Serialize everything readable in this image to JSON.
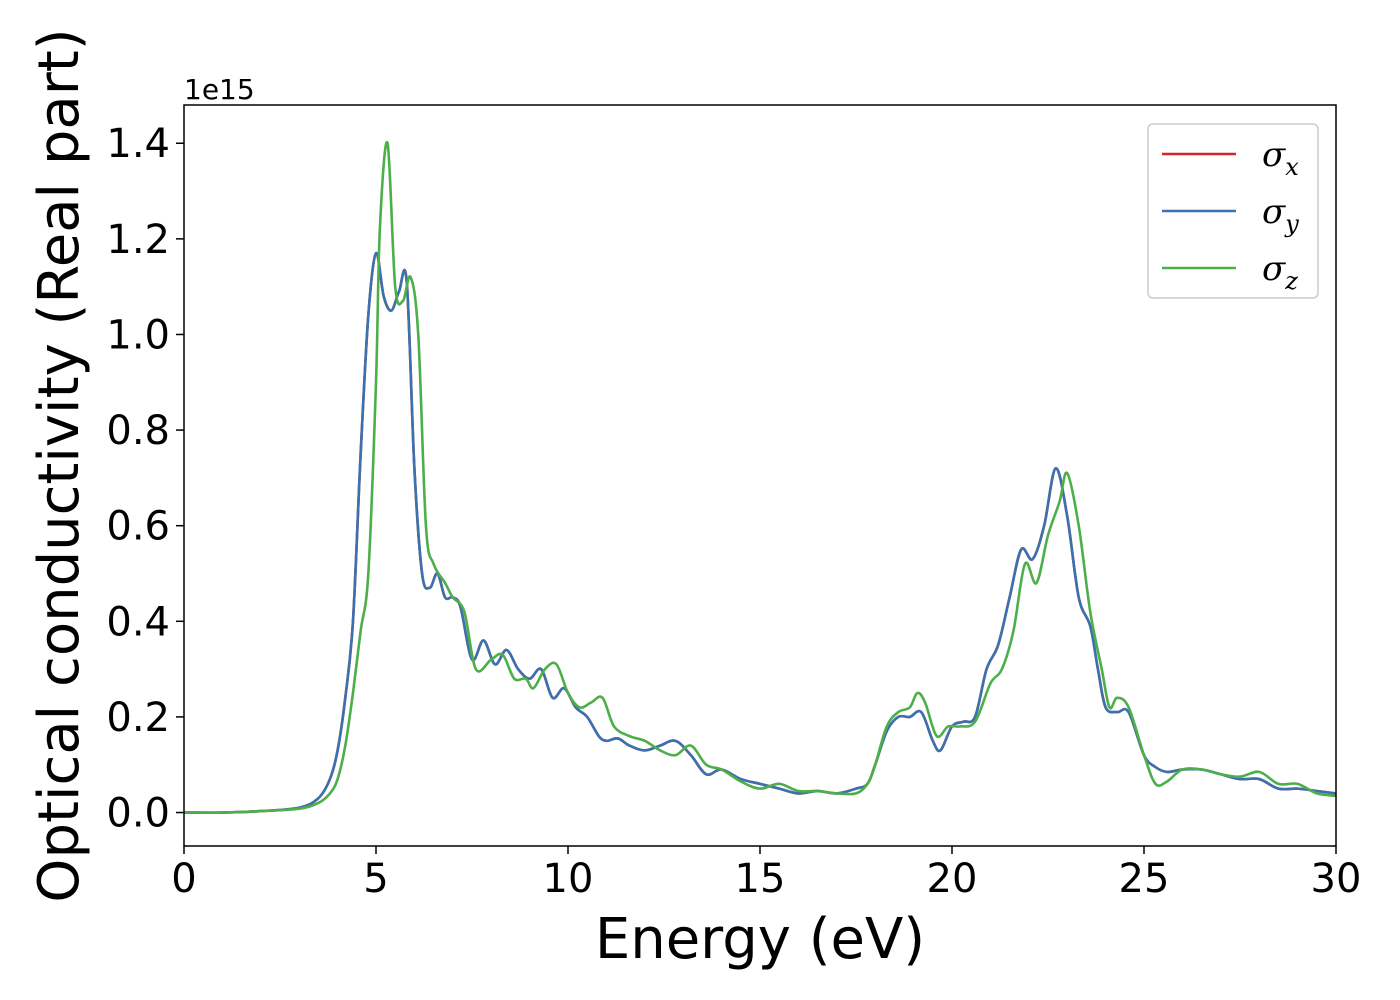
{
  "chart_data": {
    "type": "line",
    "title": "",
    "xlabel": "Energy (eV)",
    "ylabel": "Optical conductivity (Real part)",
    "y_offset_label": "1e15",
    "xlim": [
      0,
      30
    ],
    "ylim": [
      -0.07,
      1.48
    ],
    "x_ticks": [
      0,
      5,
      10,
      15,
      20,
      25,
      30
    ],
    "x_tick_labels": [
      "0",
      "5",
      "10",
      "15",
      "20",
      "25",
      "30"
    ],
    "y_ticks": [
      0.0,
      0.2,
      0.4,
      0.6,
      0.8,
      1.0,
      1.2,
      1.4
    ],
    "y_tick_labels": [
      "0.0",
      "0.2",
      "0.4",
      "0.6",
      "0.8",
      "1.0",
      "1.2",
      "1.4"
    ],
    "grid": false,
    "legend_position": "top-right",
    "series": [
      {
        "name": "σ",
        "subscript": "x",
        "color": "#d62728",
        "x": [
          0,
          1,
          2,
          3,
          3.5,
          3.8,
          4.0,
          4.2,
          4.4,
          4.6,
          4.8,
          5.0,
          5.2,
          5.4,
          5.6,
          5.8,
          6.0,
          6.2,
          6.4,
          6.6,
          6.8,
          7.0,
          7.2,
          7.5,
          7.8,
          8.1,
          8.4,
          8.7,
          9.0,
          9.3,
          9.6,
          9.9,
          10.2,
          10.5,
          10.8,
          11.0,
          11.3,
          11.6,
          12.0,
          12.4,
          12.8,
          13.2,
          13.6,
          14.0,
          14.5,
          15.0,
          15.5,
          16.0,
          16.5,
          17.0,
          17.5,
          17.8,
          18.0,
          18.3,
          18.6,
          18.9,
          19.2,
          19.5,
          19.7,
          20.0,
          20.3,
          20.6,
          20.9,
          21.2,
          21.5,
          21.8,
          22.1,
          22.4,
          22.7,
          23.0,
          23.3,
          23.6,
          23.8,
          24.0,
          24.3,
          24.6,
          25.0,
          25.3,
          25.6,
          26.0,
          26.5,
          27.0,
          27.5,
          28.0,
          28.5,
          29.0,
          29.5,
          30.0
        ],
        "values": [
          0.0,
          0.0,
          0.003,
          0.01,
          0.03,
          0.07,
          0.13,
          0.24,
          0.4,
          0.75,
          1.04,
          1.17,
          1.08,
          1.05,
          1.09,
          1.11,
          0.72,
          0.5,
          0.47,
          0.5,
          0.45,
          0.45,
          0.43,
          0.32,
          0.36,
          0.31,
          0.34,
          0.3,
          0.28,
          0.3,
          0.24,
          0.26,
          0.22,
          0.2,
          0.16,
          0.15,
          0.155,
          0.14,
          0.13,
          0.14,
          0.15,
          0.12,
          0.08,
          0.09,
          0.07,
          0.06,
          0.05,
          0.04,
          0.045,
          0.04,
          0.05,
          0.06,
          0.1,
          0.17,
          0.2,
          0.2,
          0.21,
          0.15,
          0.13,
          0.18,
          0.19,
          0.2,
          0.3,
          0.35,
          0.45,
          0.55,
          0.53,
          0.6,
          0.72,
          0.62,
          0.45,
          0.39,
          0.3,
          0.22,
          0.21,
          0.21,
          0.12,
          0.095,
          0.085,
          0.09,
          0.09,
          0.08,
          0.07,
          0.07,
          0.05,
          0.05,
          0.045,
          0.04
        ]
      },
      {
        "name": "σ",
        "subscript": "y",
        "color": "#3a72b0",
        "x": [
          0,
          1,
          2,
          3,
          3.5,
          3.8,
          4.0,
          4.2,
          4.4,
          4.6,
          4.8,
          5.0,
          5.2,
          5.4,
          5.6,
          5.8,
          6.0,
          6.2,
          6.4,
          6.6,
          6.8,
          7.0,
          7.2,
          7.5,
          7.8,
          8.1,
          8.4,
          8.7,
          9.0,
          9.3,
          9.6,
          9.9,
          10.2,
          10.5,
          10.8,
          11.0,
          11.3,
          11.6,
          12.0,
          12.4,
          12.8,
          13.2,
          13.6,
          14.0,
          14.5,
          15.0,
          15.5,
          16.0,
          16.5,
          17.0,
          17.5,
          17.8,
          18.0,
          18.3,
          18.6,
          18.9,
          19.2,
          19.5,
          19.7,
          20.0,
          20.3,
          20.6,
          20.9,
          21.2,
          21.5,
          21.8,
          22.1,
          22.4,
          22.7,
          23.0,
          23.3,
          23.6,
          23.8,
          24.0,
          24.3,
          24.6,
          25.0,
          25.3,
          25.6,
          26.0,
          26.5,
          27.0,
          27.5,
          28.0,
          28.5,
          29.0,
          29.5,
          30.0
        ],
        "values": [
          0.0,
          0.0,
          0.003,
          0.01,
          0.03,
          0.07,
          0.13,
          0.24,
          0.4,
          0.75,
          1.04,
          1.17,
          1.08,
          1.05,
          1.09,
          1.11,
          0.72,
          0.5,
          0.47,
          0.5,
          0.45,
          0.45,
          0.43,
          0.32,
          0.36,
          0.31,
          0.34,
          0.3,
          0.28,
          0.3,
          0.24,
          0.26,
          0.22,
          0.2,
          0.16,
          0.15,
          0.155,
          0.14,
          0.13,
          0.14,
          0.15,
          0.12,
          0.08,
          0.09,
          0.07,
          0.06,
          0.05,
          0.04,
          0.045,
          0.04,
          0.05,
          0.06,
          0.1,
          0.17,
          0.2,
          0.2,
          0.21,
          0.15,
          0.13,
          0.18,
          0.19,
          0.2,
          0.3,
          0.35,
          0.45,
          0.55,
          0.53,
          0.6,
          0.72,
          0.62,
          0.45,
          0.39,
          0.3,
          0.22,
          0.21,
          0.21,
          0.12,
          0.095,
          0.085,
          0.09,
          0.09,
          0.08,
          0.07,
          0.07,
          0.05,
          0.05,
          0.045,
          0.04
        ]
      },
      {
        "name": "σ",
        "subscript": "z",
        "color": "#4daf4a",
        "x": [
          0,
          1,
          2,
          3,
          3.5,
          3.8,
          4.0,
          4.2,
          4.4,
          4.6,
          4.8,
          5.0,
          5.1,
          5.3,
          5.5,
          5.7,
          5.9,
          6.1,
          6.3,
          6.5,
          6.8,
          7.0,
          7.3,
          7.6,
          8.0,
          8.3,
          8.6,
          8.9,
          9.1,
          9.4,
          9.7,
          10.0,
          10.3,
          10.6,
          10.9,
          11.2,
          11.6,
          12.0,
          12.4,
          12.8,
          13.2,
          13.6,
          14.0,
          14.5,
          15.0,
          15.5,
          16.0,
          16.5,
          17.0,
          17.5,
          17.8,
          18.0,
          18.3,
          18.6,
          18.9,
          19.1,
          19.3,
          19.6,
          19.9,
          20.2,
          20.6,
          21.0,
          21.3,
          21.6,
          21.9,
          22.2,
          22.5,
          22.8,
          23.0,
          23.3,
          23.6,
          23.9,
          24.1,
          24.3,
          24.6,
          25.0,
          25.3,
          25.6,
          26.0,
          26.5,
          27.0,
          27.5,
          28.0,
          28.5,
          29.0,
          29.5,
          30.0
        ],
        "values": [
          0.0,
          0.0,
          0.003,
          0.008,
          0.02,
          0.04,
          0.07,
          0.14,
          0.25,
          0.38,
          0.5,
          0.9,
          1.22,
          1.4,
          1.1,
          1.07,
          1.12,
          1.0,
          0.6,
          0.52,
          0.48,
          0.45,
          0.42,
          0.3,
          0.32,
          0.33,
          0.28,
          0.28,
          0.26,
          0.3,
          0.31,
          0.25,
          0.22,
          0.23,
          0.24,
          0.18,
          0.16,
          0.15,
          0.13,
          0.12,
          0.14,
          0.1,
          0.09,
          0.065,
          0.05,
          0.06,
          0.045,
          0.045,
          0.04,
          0.04,
          0.06,
          0.1,
          0.18,
          0.21,
          0.22,
          0.25,
          0.23,
          0.16,
          0.18,
          0.18,
          0.19,
          0.27,
          0.3,
          0.38,
          0.52,
          0.48,
          0.58,
          0.65,
          0.71,
          0.6,
          0.42,
          0.3,
          0.22,
          0.24,
          0.22,
          0.12,
          0.06,
          0.065,
          0.09,
          0.09,
          0.08,
          0.075,
          0.085,
          0.06,
          0.06,
          0.04,
          0.035
        ]
      }
    ]
  }
}
